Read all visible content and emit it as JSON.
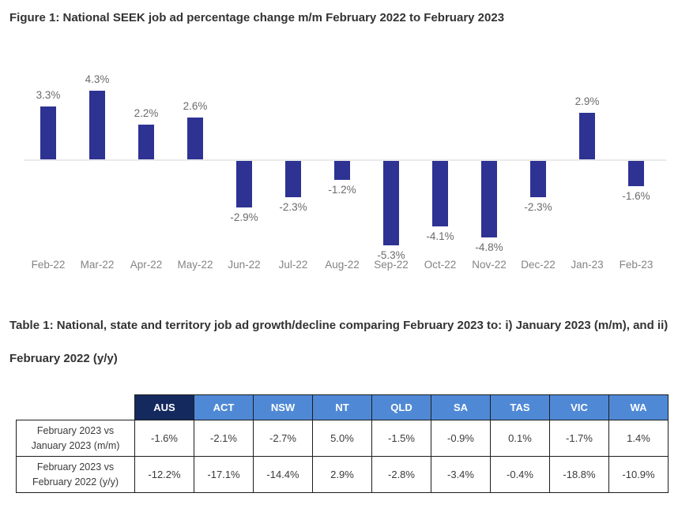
{
  "figure_title": "Figure 1: National SEEK job ad percentage change m/m February 2022 to February 2023",
  "table_title": "Table 1: National, state and territory job ad growth/decline comparing February 2023 to: i) January 2023 (m/m), and ii) February 2022 (y/y)",
  "chart_data": [
    {
      "type": "bar",
      "title": "Figure 1: National SEEK job ad percentage change m/m February 2022 to February 2023",
      "categories": [
        "Feb-22",
        "Mar-22",
        "Apr-22",
        "May-22",
        "Jun-22",
        "Jul-22",
        "Aug-22",
        "Sep-22",
        "Oct-22",
        "Nov-22",
        "Dec-22",
        "Jan-23",
        "Feb-23"
      ],
      "values": [
        3.3,
        4.3,
        2.2,
        2.6,
        -2.9,
        -2.3,
        -1.2,
        -5.3,
        -4.1,
        -4.8,
        -2.3,
        2.9,
        -1.6
      ],
      "data_label_format": "0.0%",
      "xlabel": "",
      "ylabel": "",
      "ylim": [
        -6,
        5
      ],
      "grid": false,
      "legend": false,
      "bar_color": "#2E3293",
      "zero_axis_color": "#e9e9e9",
      "data_label_color": "#6b6b6b",
      "tick_label_color": "#848484"
    },
    {
      "type": "table",
      "title": "Table 1: National, state and territory job ad growth/decline comparing February 2023 to: i) January 2023 (m/m), and ii) February 2022 (y/y)",
      "columns": [
        "AUS",
        "ACT",
        "NSW",
        "NT",
        "QLD",
        "SA",
        "TAS",
        "VIC",
        "WA"
      ],
      "header_colors": {
        "first": "#14295E",
        "rest": "#4F89D6"
      },
      "header_text_color": "#ffffff",
      "rows": [
        {
          "label_line1": "February 2023 vs",
          "label_line2": "January 2023 (m/m)",
          "values": [
            "-1.6%",
            "-2.1%",
            "-2.7%",
            "5.0%",
            "-1.5%",
            "-0.9%",
            "0.1%",
            "-1.7%",
            "1.4%"
          ]
        },
        {
          "label_line1": "February 2023 vs",
          "label_line2": "February 2022 (y/y)",
          "values": [
            "-12.2%",
            "-17.1%",
            "-14.4%",
            "2.9%",
            "-2.8%",
            "-3.4%",
            "-0.4%",
            "-18.8%",
            "-10.9%"
          ]
        }
      ]
    }
  ]
}
